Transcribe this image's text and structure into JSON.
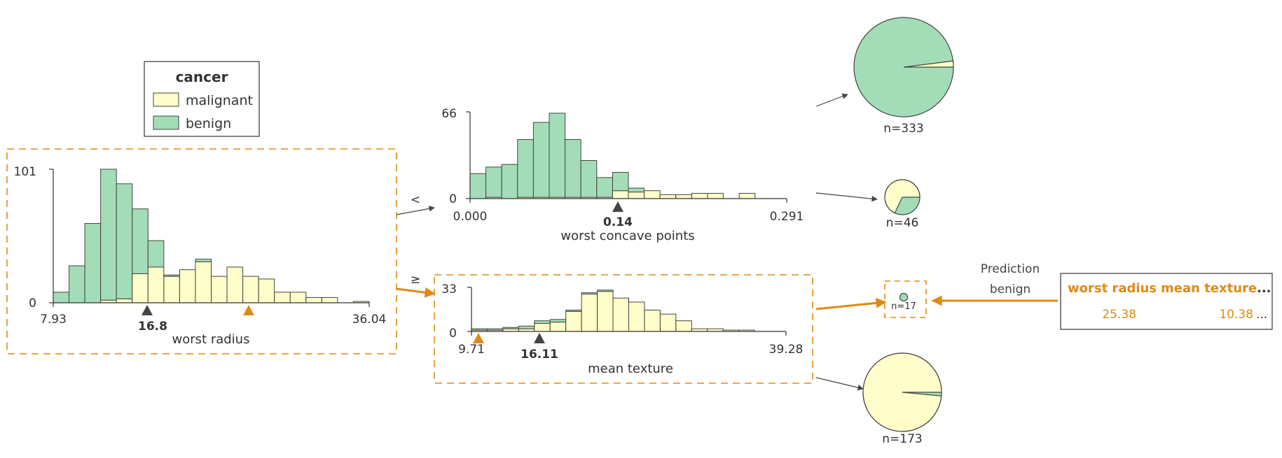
{
  "colors": {
    "malignant": "#FFFDC9",
    "benign": "#A3DDB7",
    "highlight": "#E08A14",
    "bar_stroke": "#444444",
    "arrow": "#444444"
  },
  "legend": {
    "title": "cancer",
    "items": [
      {
        "label": "malignant",
        "color": "#FFFDC9"
      },
      {
        "label": "benign",
        "color": "#A3DDB7"
      }
    ]
  },
  "nodes": {
    "root": {
      "feature": "worst radius",
      "x_min_label": "7.93",
      "x_max_label": "36.04",
      "y_max_label": "101",
      "y_zero_label": "0",
      "split_label": "16.8",
      "branch_left": "<",
      "branch_right": "≥"
    },
    "left": {
      "feature": "worst concave points",
      "x_min_label": "0.000",
      "x_max_label": "0.291",
      "y_max_label": "66",
      "y_zero_label": "0",
      "split_label": "0.14"
    },
    "right": {
      "feature": "mean texture",
      "x_min_label": "9.71",
      "x_max_label": "39.28",
      "y_max_label": "33",
      "y_zero_label": "0",
      "split_label": "16.11"
    }
  },
  "leaves": [
    {
      "label": "n=333",
      "malignant_fraction": 0.02
    },
    {
      "label": "n=46",
      "malignant_fraction": 0.68
    },
    {
      "label": "n=17",
      "malignant_fraction": 0.0
    },
    {
      "label": "n=173",
      "malignant_fraction": 0.985
    }
  ],
  "prediction": {
    "title": "Prediction",
    "value": "benign"
  },
  "instance": {
    "headers": [
      "worst radius",
      "mean texture",
      "..."
    ],
    "values": [
      "25.38",
      "10.38",
      "..."
    ]
  },
  "chart_data": [
    {
      "type": "bar",
      "title": "",
      "xlabel": "worst radius",
      "ylabel": "",
      "xlim": [
        7.93,
        36.04
      ],
      "ylim": [
        0,
        101
      ],
      "bins": 20,
      "series": [
        {
          "name": "malignant",
          "values": [
            0,
            0,
            0,
            2,
            3,
            22,
            27,
            20,
            25,
            31,
            20,
            27,
            20,
            18,
            8,
            8,
            4,
            4,
            0,
            1
          ]
        },
        {
          "name": "benign",
          "values": [
            8,
            28,
            60,
            99,
            87,
            49,
            20,
            1,
            0,
            2,
            0,
            0,
            0,
            0,
            0,
            0,
            0,
            0,
            0,
            0
          ]
        }
      ]
    },
    {
      "type": "bar",
      "title": "",
      "xlabel": "worst concave points",
      "ylabel": "",
      "xlim": [
        0.0,
        0.291
      ],
      "ylim": [
        0,
        66
      ],
      "bins": 20,
      "series": [
        {
          "name": "malignant",
          "values": [
            0,
            1,
            0,
            1,
            1,
            1,
            1,
            1,
            1,
            6,
            5,
            6,
            3,
            3,
            4,
            4,
            0,
            4,
            0,
            0
          ]
        },
        {
          "name": "benign",
          "values": [
            19,
            23,
            26,
            44,
            57,
            64,
            44,
            28,
            15,
            14,
            3,
            0,
            0,
            0,
            0,
            0,
            0,
            0,
            0,
            0
          ]
        }
      ]
    },
    {
      "type": "bar",
      "title": "",
      "xlabel": "mean texture",
      "ylabel": "",
      "xlim": [
        9.71,
        39.28
      ],
      "ylim": [
        0,
        33
      ],
      "bins": 20,
      "series": [
        {
          "name": "malignant",
          "values": [
            1,
            1,
            2,
            2,
            6,
            7,
            15,
            28,
            30,
            25,
            22,
            16,
            13,
            8,
            2,
            2,
            1,
            1,
            0,
            0
          ]
        },
        {
          "name": "benign",
          "values": [
            1,
            1,
            1,
            2,
            2,
            2,
            1,
            1,
            1,
            0,
            0,
            0,
            0,
            0,
            0,
            0,
            0,
            0,
            0,
            0
          ]
        }
      ]
    }
  ]
}
